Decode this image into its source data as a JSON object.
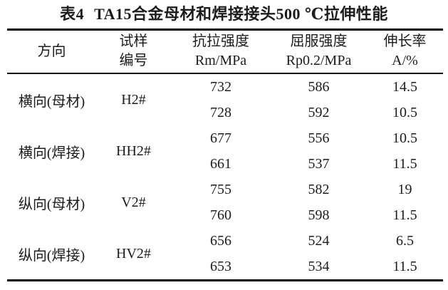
{
  "title": {
    "label": "表4",
    "text": "TA15合金母材和焊接接头500 ℃拉伸性能"
  },
  "table": {
    "headers": [
      {
        "line1": "方向",
        "line2": ""
      },
      {
        "line1": "试样",
        "line2": "编号"
      },
      {
        "line1": "抗拉强度",
        "line2": "Rm/MPa"
      },
      {
        "line1": "屈服强度",
        "line2": "Rp0.2/MPa"
      },
      {
        "line1": "伸长率",
        "line2": "A/%"
      }
    ],
    "groups": [
      {
        "direction": "横向(母材)",
        "sample": "H2#",
        "rows": [
          [
            "732",
            "586",
            "14.5"
          ],
          [
            "728",
            "592",
            "10.5"
          ]
        ]
      },
      {
        "direction": "横向(焊接)",
        "sample": "HH2#",
        "rows": [
          [
            "677",
            "556",
            "10.5"
          ],
          [
            "661",
            "537",
            "11.5"
          ]
        ]
      },
      {
        "direction": "纵向(母材)",
        "sample": "V2#",
        "rows": [
          [
            "755",
            "582",
            "19"
          ],
          [
            "760",
            "598",
            "11.5"
          ]
        ]
      },
      {
        "direction": "纵向(焊接)",
        "sample": "HV2#",
        "rows": [
          [
            "656",
            "524",
            "6.5"
          ],
          [
            "653",
            "534",
            "11.5"
          ]
        ]
      }
    ]
  }
}
